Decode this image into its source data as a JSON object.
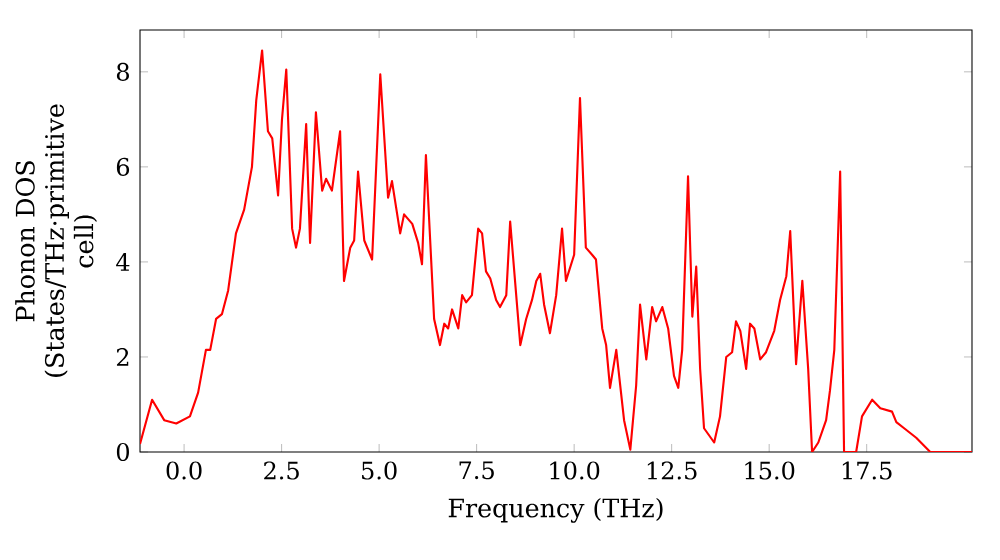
{
  "chart_data": {
    "type": "line",
    "xlabel": "Frequency (THz)",
    "ylabel": "Phonon DOS (States/THz·primitive cell)",
    "x": [
      -1.13,
      -0.82,
      -0.51,
      -0.2,
      0.15,
      0.36,
      0.56,
      0.67,
      0.82,
      0.97,
      1.13,
      1.33,
      1.54,
      1.74,
      1.85,
      2.0,
      2.15,
      2.26,
      2.41,
      2.51,
      2.62,
      2.77,
      2.87,
      2.97,
      3.13,
      3.23,
      3.38,
      3.54,
      3.64,
      3.79,
      4.0,
      4.1,
      4.26,
      4.36,
      4.46,
      4.62,
      4.82,
      5.03,
      5.23,
      5.33,
      5.54,
      5.64,
      5.85,
      6.0,
      6.1,
      6.2,
      6.41,
      6.56,
      6.67,
      6.77,
      6.87,
      7.03,
      7.13,
      7.23,
      7.38,
      7.54,
      7.64,
      7.74,
      7.85,
      8.0,
      8.1,
      8.26,
      8.36,
      8.62,
      8.77,
      8.92,
      9.03,
      9.13,
      9.23,
      9.38,
      9.54,
      9.69,
      9.79,
      10.0,
      10.15,
      10.3,
      10.46,
      10.56,
      10.72,
      10.82,
      10.92,
      11.08,
      11.28,
      11.44,
      11.59,
      11.69,
      11.85,
      12.0,
      12.1,
      12.26,
      12.41,
      12.56,
      12.67,
      12.77,
      12.92,
      13.03,
      13.13,
      13.23,
      13.33,
      13.59,
      13.74,
      13.9,
      14.05,
      14.15,
      14.26,
      14.41,
      14.51,
      14.62,
      14.77,
      14.92,
      15.13,
      15.28,
      15.44,
      15.54,
      15.69,
      15.85,
      16.0,
      16.1,
      16.26,
      16.46,
      16.56,
      16.67,
      16.82,
      16.92,
      17.23,
      17.38,
      17.64,
      17.85,
      18.15,
      18.26,
      18.46,
      18.77,
      19.13,
      20.2
    ],
    "values": [
      0.17,
      1.1,
      0.67,
      0.6,
      0.75,
      1.25,
      2.15,
      2.15,
      2.8,
      2.9,
      3.4,
      4.6,
      5.1,
      6.0,
      7.4,
      8.45,
      6.75,
      6.6,
      5.4,
      7.0,
      8.05,
      4.7,
      4.3,
      4.7,
      6.9,
      4.4,
      7.15,
      5.5,
      5.75,
      5.5,
      6.75,
      3.6,
      4.3,
      4.45,
      5.9,
      4.45,
      4.05,
      7.95,
      5.35,
      5.7,
      4.6,
      5.0,
      4.8,
      4.4,
      3.95,
      6.25,
      2.8,
      2.25,
      2.7,
      2.6,
      3.0,
      2.6,
      3.3,
      3.15,
      3.3,
      4.7,
      4.6,
      3.8,
      3.65,
      3.2,
      3.05,
      3.3,
      4.85,
      2.25,
      2.8,
      3.2,
      3.6,
      3.75,
      3.1,
      2.5,
      3.3,
      4.7,
      3.6,
      4.15,
      7.45,
      4.3,
      4.15,
      4.05,
      2.6,
      2.25,
      1.35,
      2.15,
      0.67,
      0.05,
      1.4,
      3.1,
      1.95,
      3.05,
      2.75,
      3.05,
      2.6,
      1.6,
      1.35,
      2.15,
      5.8,
      2.85,
      3.9,
      1.75,
      0.5,
      0.2,
      0.75,
      2.0,
      2.1,
      2.75,
      2.55,
      1.75,
      2.7,
      2.6,
      1.95,
      2.1,
      2.55,
      3.2,
      3.7,
      4.65,
      1.85,
      3.6,
      1.75,
      0,
      0.2,
      0.67,
      1.3,
      2.15,
      5.9,
      0,
      0,
      0.75,
      1.1,
      0.92,
      0.85,
      0.63,
      0.5,
      0.3,
      0,
      0
    ],
    "color": "#ff0000",
    "xlim": [
      -1.13,
      20.2
    ],
    "ylim": [
      0,
      8.88
    ],
    "xticks": [
      {
        "value": 0,
        "label": "0.0"
      },
      {
        "value": 2.5,
        "label": "2.5"
      },
      {
        "value": 5,
        "label": "5.0"
      },
      {
        "value": 7.5,
        "label": "7.5"
      },
      {
        "value": 10,
        "label": "10.0"
      },
      {
        "value": 12.5,
        "label": "12.5"
      },
      {
        "value": 15,
        "label": "15.0"
      },
      {
        "value": 17.5,
        "label": "17.5"
      }
    ],
    "yticks": [
      0,
      2,
      4,
      6,
      8
    ]
  }
}
